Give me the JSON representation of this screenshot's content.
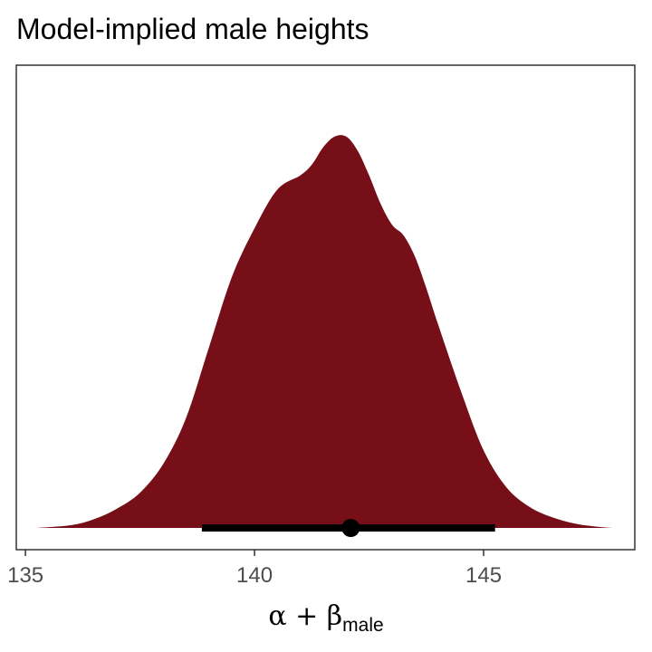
{
  "chart_data": {
    "type": "area",
    "title": "Model-implied male heights",
    "xlabel": {
      "main": "α + β",
      "sub": "male"
    },
    "ylabel": "",
    "xlim": [
      134.8,
      148.3
    ],
    "x_ticks": [
      135,
      140,
      145
    ],
    "y_ticks_shown": false,
    "grid": false,
    "fill_color": "#770F18",
    "interval_color": "#000000",
    "density": {
      "x": [
        135.25,
        136.0,
        136.5,
        137.0,
        137.5,
        138.0,
        138.5,
        139.0,
        139.5,
        140.0,
        140.5,
        141.0,
        141.25,
        141.5,
        141.75,
        142.0,
        142.25,
        142.5,
        142.75,
        143.0,
        143.25,
        143.5,
        143.75,
        144.0,
        144.5,
        145.0,
        145.5,
        146.0,
        146.5,
        147.0,
        147.5,
        147.8
      ],
      "y": [
        0.0,
        0.008,
        0.025,
        0.055,
        0.1,
        0.18,
        0.31,
        0.51,
        0.71,
        0.85,
        0.96,
        1.0,
        1.03,
        1.08,
        1.11,
        1.11,
        1.07,
        1.0,
        0.92,
        0.86,
        0.83,
        0.77,
        0.68,
        0.58,
        0.39,
        0.22,
        0.115,
        0.06,
        0.03,
        0.012,
        0.003,
        0.0
      ]
    },
    "density_max": 1.13,
    "point_estimate": 142.1,
    "interval": [
      138.85,
      145.25
    ]
  }
}
